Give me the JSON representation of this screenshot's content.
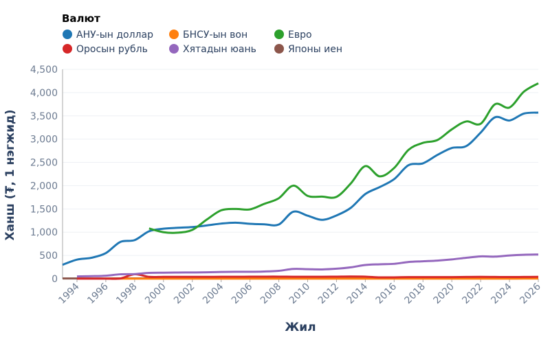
{
  "chart_data": {
    "type": "line",
    "xlabel": "Жил",
    "ylabel": "Ханш (₮, 1 нэгжид)",
    "legend_title": "Валют",
    "legend_placement": "top-left",
    "grid": true,
    "xlim": [
      1993,
      2026
    ],
    "ylim": [
      0,
      4500
    ],
    "xticks": [
      1994,
      1996,
      1998,
      2000,
      2002,
      2004,
      2006,
      2008,
      2010,
      2012,
      2014,
      2016,
      2018,
      2020,
      2022,
      2024,
      2026
    ],
    "yticks": [
      0,
      500,
      1000,
      1500,
      2000,
      2500,
      3000,
      3500,
      4000,
      4500
    ],
    "ytick_labels": [
      "0",
      "500",
      "1,000",
      "1,500",
      "2,000",
      "2,500",
      "3,000",
      "3,500",
      "4,000",
      "4,500"
    ],
    "series": [
      {
        "name": "АНУ-ын доллар",
        "color": "#1f77b4",
        "start": 1993,
        "values": [
          300,
          410,
          450,
          550,
          790,
          830,
          1020,
          1075,
          1095,
          1110,
          1145,
          1185,
          1205,
          1180,
          1170,
          1165,
          1440,
          1355,
          1265,
          1360,
          1525,
          1820,
          1970,
          2140,
          2440,
          2480,
          2660,
          2810,
          2850,
          3140,
          3470,
          3400,
          3550,
          3570
        ]
      },
      {
        "name": "БНСУ-ын вон",
        "color": "#ff7f0e",
        "start": 1996,
        "values": [
          1,
          1,
          1,
          1,
          1,
          1,
          1,
          1,
          1,
          1,
          1,
          1,
          1,
          1,
          1,
          1,
          1,
          2,
          2,
          2,
          2,
          2,
          2,
          2,
          2,
          2,
          2,
          2,
          2,
          3,
          3
        ]
      },
      {
        "name": "Евро",
        "color": "#2ca02c",
        "start": 1999,
        "values": [
          1080,
          1000,
          990,
          1050,
          1270,
          1470,
          1500,
          1490,
          1610,
          1730,
          2000,
          1780,
          1765,
          1760,
          2050,
          2420,
          2200,
          2380,
          2770,
          2920,
          2980,
          3210,
          3380,
          3330,
          3750,
          3680,
          4020,
          4200
        ]
      },
      {
        "name": "Оросын рубль",
        "color": "#d62728",
        "start": 1994,
        "values": [
          1,
          1,
          2,
          6,
          95,
          40,
          40,
          40,
          40,
          40,
          42,
          42,
          44,
          45,
          45,
          42,
          42,
          42,
          45,
          48,
          45,
          30,
          30,
          35,
          35,
          35,
          35,
          38,
          40,
          38,
          36,
          38,
          40
        ]
      },
      {
        "name": "Хятадын юань",
        "color": "#9467bd",
        "start": 1994,
        "values": [
          50,
          55,
          65,
          95,
          100,
          125,
          130,
          133,
          135,
          138,
          145,
          150,
          150,
          155,
          170,
          210,
          205,
          200,
          215,
          245,
          295,
          310,
          320,
          360,
          375,
          390,
          415,
          450,
          480,
          475,
          500,
          515,
          520
        ]
      },
      {
        "name": "Японы иен",
        "color": "#8c564b",
        "start": 1993,
        "values": [
          5,
          6,
          6,
          6,
          7,
          7,
          9,
          10,
          9,
          9,
          10,
          10,
          10,
          10,
          10,
          11,
          15,
          15,
          16,
          17,
          16,
          17,
          17,
          19,
          22,
          22,
          24,
          26,
          26,
          24,
          24,
          22,
          23,
          24
        ]
      }
    ]
  }
}
